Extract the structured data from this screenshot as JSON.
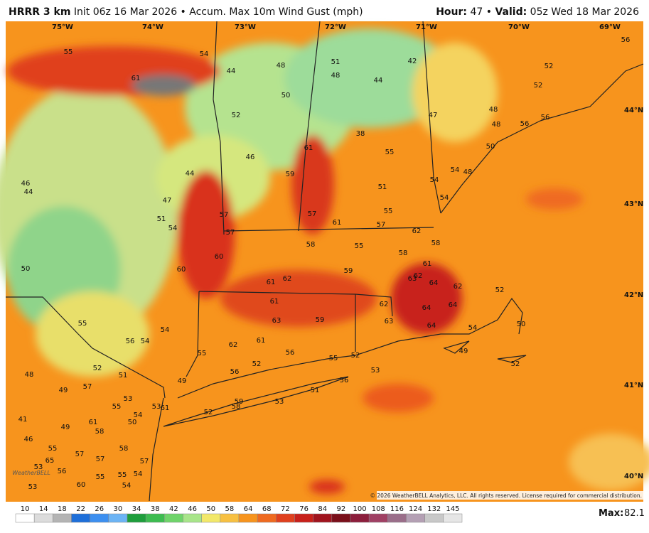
{
  "header": {
    "model": "HRRR 3 km",
    "description": "Init 06z 16 Mar 2026 • Accum. Max 10m Wind Gust (mph)",
    "hour_label": "Hour:",
    "hour": "47 •",
    "valid_label": "Valid:",
    "valid": "05z Wed 18 Mar 2026"
  },
  "map": {
    "longitudes": [
      "75°W",
      "74°W",
      "73°W",
      "72°W",
      "71°W",
      "70°W",
      "69°W"
    ],
    "latitudes": [
      "44°N",
      "43°N",
      "42°N",
      "41°N",
      "40°N"
    ],
    "station_values": [
      56,
      55,
      54,
      44,
      48,
      51,
      48,
      42,
      52,
      61,
      52,
      44,
      50,
      48,
      47,
      52,
      56,
      48,
      56,
      38,
      50,
      55,
      46,
      61,
      59,
      44,
      54,
      48,
      54,
      46,
      44,
      51,
      54,
      47,
      55,
      57,
      57,
      51,
      54,
      61,
      57,
      57,
      62,
      58,
      55,
      58,
      60,
      58,
      50,
      60,
      61,
      59,
      62,
      61,
      62,
      63,
      64,
      62,
      52,
      61,
      62,
      64,
      64,
      63,
      59,
      63,
      55,
      54,
      64,
      54,
      50,
      56,
      54,
      61,
      62,
      56,
      49,
      55,
      55,
      52,
      52,
      52,
      56,
      52,
      53,
      51,
      48,
      49,
      56,
      51,
      57,
      49,
      53,
      55,
      59,
      53,
      58,
      53,
      61,
      52,
      54,
      41,
      50,
      61,
      49,
      58,
      46,
      55,
      58,
      57,
      57,
      65,
      57,
      53,
      56,
      55,
      55,
      54,
      54,
      60,
      53
    ]
  },
  "legend": {
    "ticks": [
      10,
      14,
      18,
      22,
      26,
      30,
      34,
      38,
      42,
      46,
      50,
      58,
      64,
      68,
      72,
      76,
      84,
      92,
      100,
      108,
      116,
      124,
      132,
      145
    ],
    "max_label": "Max:",
    "max": 82.1
  },
  "logo": "WeatherBELL",
  "copyright": "© 2026 WeatherBELL Analytics, LLC. All rights reserved. License required for commercial distribution."
}
